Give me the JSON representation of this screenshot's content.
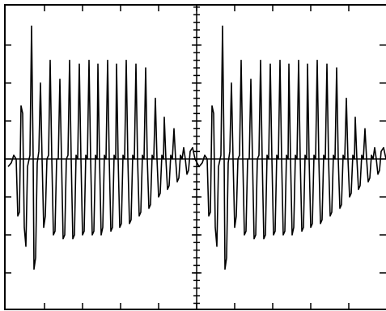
{
  "chart_data": {
    "type": "line",
    "xlim": [
      6,
      477
    ],
    "ylim": [
      -3.96,
      4.06
    ],
    "xticks": [
      55,
      102,
      149,
      196,
      243,
      290,
      337,
      384,
      431
    ],
    "yticks": [
      -3,
      -2,
      -1,
      0,
      1,
      2,
      3
    ],
    "yminorticks": [
      -3.8,
      -3.6,
      -3.4,
      -3.2,
      -3.0,
      -2.8,
      -2.6,
      -2.4,
      -2.2,
      -2.0,
      -1.8,
      -1.6,
      -1.4,
      -1.2,
      -1.0,
      -0.8,
      -0.6,
      -0.4,
      -0.2,
      0,
      0.2,
      0.4,
      0.6,
      0.8,
      1.0,
      1.2,
      1.4,
      1.6,
      1.8,
      2.0,
      2.2,
      2.4,
      2.6,
      2.8,
      3.0,
      3.2,
      3.4,
      3.6,
      3.8,
      4.0
    ],
    "grid": false,
    "series": [
      {
        "color": "#000000",
        "x": [
          10,
          14,
          17,
          20,
          22,
          24,
          26,
          28,
          30,
          32,
          34,
          37,
          39,
          41,
          42,
          44,
          46,
          48,
          50,
          52,
          54,
          56,
          58,
          60,
          62,
          64,
          66,
          68,
          70,
          72,
          74,
          76,
          78,
          80,
          82,
          84,
          86,
          88,
          90,
          92,
          94,
          96,
          98,
          100,
          102,
          104,
          106,
          108,
          110,
          112,
          114,
          116,
          118,
          120,
          121,
          123,
          125,
          127,
          129,
          131,
          133,
          135,
          137,
          139,
          141,
          143,
          144,
          146,
          148,
          150,
          152,
          154,
          156,
          158,
          160,
          162,
          164,
          166,
          168,
          170,
          172,
          174,
          176,
          178,
          180,
          182,
          184,
          186,
          188,
          190,
          192,
          194,
          196,
          198,
          200,
          202,
          203,
          205,
          207,
          209,
          211,
          213,
          215,
          217,
          219,
          221,
          223,
          225,
          227,
          229,
          231,
          233,
          235,
          238,
          241,
          246,
          250,
          253,
          256,
          258,
          260,
          262,
          264,
          266,
          268,
          270,
          273,
          275,
          277,
          278,
          280,
          282,
          284,
          286,
          288,
          290,
          292,
          294,
          296,
          298,
          300,
          302,
          304,
          306,
          308,
          310,
          312,
          314,
          316,
          318,
          320,
          322,
          324,
          326,
          328,
          330,
          332,
          334,
          336,
          338,
          340,
          342,
          344,
          346,
          348,
          350,
          352,
          354,
          356,
          357,
          359,
          361,
          363,
          365,
          367,
          369,
          371,
          373,
          375,
          377,
          379,
          380,
          382,
          384,
          386,
          388,
          390,
          392,
          394,
          396,
          398,
          400,
          402,
          404,
          406,
          408,
          410,
          412,
          414,
          416,
          418,
          420,
          422,
          424,
          426,
          428,
          430,
          432,
          434,
          436,
          438,
          439,
          441,
          443,
          445,
          447,
          449,
          451,
          453,
          455,
          457,
          459,
          461,
          463,
          465,
          467,
          469,
          471,
          474,
          477
        ],
        "values": [
          -0.2,
          -0.1,
          0.1,
          0,
          -1.5,
          -1.4,
          1.4,
          1.2,
          -1.8,
          -2.3,
          -0.2,
          0.1,
          3.5,
          0,
          -2.9,
          -2.6,
          -0.1,
          0.2,
          2.0,
          0,
          -1.8,
          -1.5,
          0,
          0.1,
          2.6,
          0,
          -2.0,
          -1.9,
          0,
          0,
          2.1,
          0,
          -2.1,
          -2.0,
          0,
          0.1,
          2.6,
          0,
          -2.1,
          -2.0,
          0.1,
          0,
          2.5,
          0,
          -2.0,
          -1.9,
          0.1,
          0,
          2.6,
          0,
          -2.0,
          -1.9,
          0.1,
          0,
          2.5,
          0,
          -2.0,
          -1.8,
          0.1,
          0,
          2.6,
          0,
          -1.9,
          -1.8,
          0.1,
          0,
          2.5,
          0,
          -1.8,
          -1.7,
          0.1,
          0,
          2.6,
          0,
          -1.7,
          -1.6,
          0.1,
          0,
          2.5,
          0,
          -1.5,
          -1.4,
          0.1,
          0,
          2.4,
          0,
          -1.3,
          -1.2,
          0.1,
          0,
          1.6,
          0,
          -1.0,
          -0.9,
          0.1,
          0,
          1.1,
          0,
          -0.8,
          -0.7,
          0.1,
          0,
          0.8,
          0,
          -0.6,
          -0.5,
          0.1,
          0,
          0.3,
          0,
          -0.4,
          -0.3,
          0.2,
          0.3,
          0,
          -0.2,
          -0.1,
          0.1,
          0,
          -1.5,
          -1.4,
          1.4,
          1.2,
          -1.8,
          -2.3,
          -0.2,
          0.1,
          3.5,
          0,
          -2.9,
          -2.6,
          -0.1,
          0.2,
          2.0,
          0,
          -1.8,
          -1.5,
          0,
          0.1,
          2.6,
          0,
          -2.0,
          -1.9,
          0,
          0,
          2.1,
          0,
          -2.1,
          -2.0,
          0,
          0.1,
          2.6,
          0,
          -2.1,
          -2.0,
          0.1,
          0,
          2.5,
          0,
          -2.0,
          -1.9,
          0.1,
          0,
          2.6,
          0,
          -2.0,
          -1.9,
          0.1,
          0,
          2.5,
          0,
          -2.0,
          -1.8,
          0.1,
          0,
          2.6,
          0,
          -1.9,
          -1.8,
          0.1,
          0,
          2.5,
          0,
          -1.8,
          -1.7,
          0.1,
          0,
          2.6,
          0,
          -1.7,
          -1.6,
          0.1,
          0,
          2.5,
          0,
          -1.5,
          -1.4,
          0.1,
          0,
          2.4,
          0,
          -1.3,
          -1.2,
          0.1,
          0,
          1.6,
          0,
          -1.0,
          -0.9,
          0.1,
          0,
          1.1,
          0,
          -0.8,
          -0.7,
          0.1,
          0,
          0.8,
          0,
          -0.6,
          -0.5,
          0.1,
          0,
          0.3,
          0,
          -0.4,
          -0.3,
          0.2,
          0.3,
          0
        ]
      }
    ]
  }
}
